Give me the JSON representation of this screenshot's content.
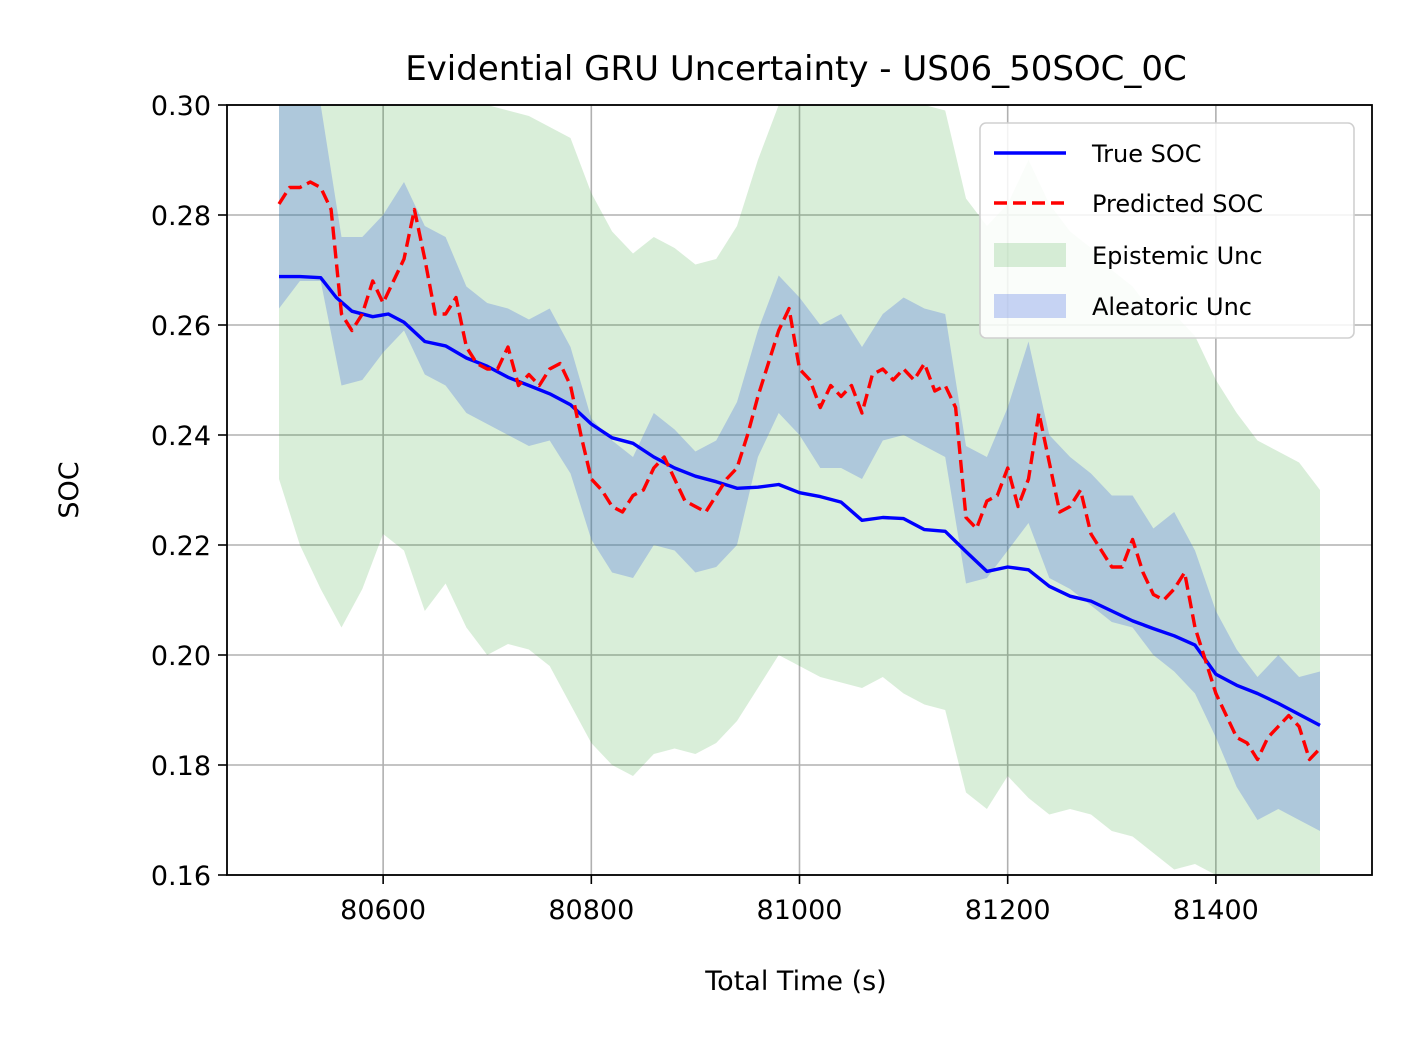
{
  "chart_data": {
    "type": "line",
    "title": "Evidential GRU Uncertainty - US06_50SOC_0C",
    "xlabel": "Total Time (s)",
    "ylabel": "SOC",
    "xlim": [
      80450,
      81550
    ],
    "ylim": [
      0.16,
      0.3
    ],
    "xticks": [
      80600,
      80800,
      81000,
      81200,
      81400
    ],
    "xtick_labels": [
      "80600",
      "80800",
      "81000",
      "81200",
      "81400"
    ],
    "yticks": [
      0.16,
      0.18,
      0.2,
      0.22,
      0.24,
      0.26,
      0.28,
      0.3
    ],
    "ytick_labels": [
      "0.16",
      "0.18",
      "0.20",
      "0.22",
      "0.24",
      "0.26",
      "0.28",
      "0.30"
    ],
    "grid": true,
    "legend_position": "top-right",
    "colors": {
      "true_soc": "#0000ff",
      "predicted_soc": "#ff0000",
      "epistemic": "#2ca02c",
      "aleatoric": "#4169e1"
    },
    "series": [
      {
        "name": "True SOC",
        "kind": "line",
        "x": [
          80500,
          80520,
          80540,
          80555,
          80570,
          80590,
          80605,
          80620,
          80640,
          80660,
          80680,
          80700,
          80720,
          80740,
          80760,
          80780,
          80800,
          80820,
          80840,
          80860,
          80880,
          80900,
          80920,
          80940,
          80960,
          80980,
          81000,
          81020,
          81040,
          81060,
          81080,
          81100,
          81120,
          81140,
          81160,
          81180,
          81200,
          81220,
          81240,
          81260,
          81280,
          81300,
          81320,
          81340,
          81360,
          81380,
          81400,
          81420,
          81440,
          81460,
          81480,
          81500
        ],
        "y": [
          0.2688,
          0.2688,
          0.2686,
          0.265,
          0.2625,
          0.2615,
          0.262,
          0.2605,
          0.257,
          0.2562,
          0.254,
          0.2525,
          0.2505,
          0.249,
          0.2475,
          0.2455,
          0.242,
          0.2395,
          0.2385,
          0.236,
          0.234,
          0.2325,
          0.2315,
          0.2303,
          0.2305,
          0.231,
          0.2295,
          0.2288,
          0.2278,
          0.2245,
          0.225,
          0.2248,
          0.2228,
          0.2225,
          0.2188,
          0.2152,
          0.216,
          0.2155,
          0.2125,
          0.2107,
          0.2098,
          0.208,
          0.2062,
          0.2048,
          0.2035,
          0.2018,
          0.1965,
          0.1945,
          0.193,
          0.1912,
          0.1892,
          0.1872
        ]
      },
      {
        "name": "Predicted SOC",
        "kind": "dashed-line",
        "x": [
          80500,
          80510,
          80520,
          80530,
          80540,
          80550,
          80560,
          80570,
          80580,
          80590,
          80600,
          80610,
          80620,
          80630,
          80640,
          80650,
          80660,
          80670,
          80680,
          80690,
          80700,
          80710,
          80720,
          80730,
          80740,
          80750,
          80760,
          80770,
          80780,
          80790,
          80800,
          80810,
          80820,
          80830,
          80840,
          80850,
          80860,
          80870,
          80880,
          80890,
          80900,
          80910,
          80920,
          80930,
          80940,
          80950,
          80960,
          80970,
          80980,
          80990,
          81000,
          81010,
          81020,
          81030,
          81040,
          81050,
          81060,
          81070,
          81080,
          81090,
          81100,
          81110,
          81120,
          81130,
          81140,
          81150,
          81160,
          81170,
          81180,
          81190,
          81200,
          81210,
          81220,
          81230,
          81240,
          81250,
          81260,
          81270,
          81280,
          81290,
          81300,
          81310,
          81320,
          81330,
          81340,
          81350,
          81360,
          81370,
          81380,
          81390,
          81400,
          81410,
          81420,
          81430,
          81440,
          81450,
          81460,
          81470,
          81480,
          81490,
          81500
        ],
        "y": [
          0.282,
          0.285,
          0.285,
          0.286,
          0.285,
          0.281,
          0.262,
          0.259,
          0.262,
          0.268,
          0.264,
          0.268,
          0.272,
          0.281,
          0.272,
          0.262,
          0.262,
          0.265,
          0.256,
          0.253,
          0.252,
          0.252,
          0.256,
          0.249,
          0.251,
          0.249,
          0.252,
          0.253,
          0.249,
          0.24,
          0.232,
          0.23,
          0.227,
          0.226,
          0.229,
          0.23,
          0.234,
          0.236,
          0.232,
          0.228,
          0.227,
          0.226,
          0.229,
          0.232,
          0.234,
          0.24,
          0.247,
          0.253,
          0.259,
          0.263,
          0.252,
          0.25,
          0.245,
          0.249,
          0.247,
          0.249,
          0.244,
          0.251,
          0.252,
          0.25,
          0.252,
          0.25,
          0.253,
          0.248,
          0.249,
          0.245,
          0.225,
          0.223,
          0.228,
          0.229,
          0.234,
          0.227,
          0.232,
          0.244,
          0.235,
          0.226,
          0.227,
          0.23,
          0.222,
          0.219,
          0.216,
          0.216,
          0.221,
          0.215,
          0.211,
          0.21,
          0.212,
          0.215,
          0.205,
          0.199,
          0.193,
          0.189,
          0.185,
          0.184,
          0.181,
          0.185,
          0.187,
          0.189,
          0.187,
          0.181,
          0.183
        ]
      },
      {
        "name": "Epistemic Unc",
        "kind": "band",
        "x": [
          80500,
          80520,
          80540,
          80560,
          80580,
          80600,
          80620,
          80640,
          80660,
          80680,
          80700,
          80720,
          80740,
          80760,
          80780,
          80800,
          80820,
          80840,
          80860,
          80880,
          80900,
          80920,
          80940,
          80960,
          80980,
          81000,
          81020,
          81040,
          81060,
          81080,
          81100,
          81120,
          81140,
          81160,
          81180,
          81200,
          81220,
          81240,
          81260,
          81280,
          81300,
          81320,
          81340,
          81360,
          81380,
          81400,
          81420,
          81440,
          81460,
          81480,
          81500
        ],
        "lower": [
          0.232,
          0.22,
          0.212,
          0.205,
          0.212,
          0.222,
          0.219,
          0.208,
          0.213,
          0.205,
          0.2,
          0.202,
          0.201,
          0.198,
          0.191,
          0.184,
          0.18,
          0.178,
          0.182,
          0.183,
          0.182,
          0.184,
          0.188,
          0.194,
          0.2,
          0.198,
          0.196,
          0.195,
          0.194,
          0.196,
          0.193,
          0.191,
          0.19,
          0.175,
          0.172,
          0.178,
          0.174,
          0.171,
          0.172,
          0.171,
          0.168,
          0.167,
          0.164,
          0.161,
          0.162,
          0.16,
          0.16,
          0.16,
          0.16,
          0.16,
          0.16
        ],
        "upper": [
          0.3,
          0.3,
          0.3,
          0.3,
          0.3,
          0.3,
          0.3,
          0.3,
          0.3,
          0.3,
          0.3,
          0.299,
          0.298,
          0.296,
          0.294,
          0.284,
          0.277,
          0.273,
          0.276,
          0.274,
          0.271,
          0.272,
          0.278,
          0.29,
          0.3,
          0.3,
          0.3,
          0.3,
          0.3,
          0.3,
          0.3,
          0.3,
          0.299,
          0.283,
          0.278,
          0.282,
          0.29,
          0.282,
          0.277,
          0.274,
          0.27,
          0.267,
          0.262,
          0.262,
          0.258,
          0.25,
          0.244,
          0.239,
          0.237,
          0.235,
          0.23
        ]
      },
      {
        "name": "Aleatoric Unc",
        "kind": "band",
        "x": [
          80500,
          80520,
          80540,
          80560,
          80580,
          80600,
          80620,
          80640,
          80660,
          80680,
          80700,
          80720,
          80740,
          80760,
          80780,
          80800,
          80820,
          80840,
          80860,
          80880,
          80900,
          80920,
          80940,
          80960,
          80980,
          81000,
          81020,
          81040,
          81060,
          81080,
          81100,
          81120,
          81140,
          81160,
          81180,
          81200,
          81220,
          81240,
          81260,
          81280,
          81300,
          81320,
          81340,
          81360,
          81380,
          81400,
          81420,
          81440,
          81460,
          81480,
          81500
        ],
        "lower": [
          0.263,
          0.268,
          0.268,
          0.249,
          0.25,
          0.255,
          0.259,
          0.251,
          0.249,
          0.244,
          0.242,
          0.24,
          0.238,
          0.239,
          0.233,
          0.221,
          0.215,
          0.214,
          0.22,
          0.219,
          0.215,
          0.216,
          0.22,
          0.236,
          0.244,
          0.24,
          0.234,
          0.234,
          0.232,
          0.239,
          0.24,
          0.238,
          0.236,
          0.213,
          0.214,
          0.219,
          0.224,
          0.214,
          0.212,
          0.209,
          0.206,
          0.205,
          0.2,
          0.197,
          0.193,
          0.185,
          0.176,
          0.17,
          0.172,
          0.17,
          0.168
        ],
        "upper": [
          0.3,
          0.3,
          0.3,
          0.276,
          0.276,
          0.28,
          0.286,
          0.278,
          0.276,
          0.267,
          0.264,
          0.263,
          0.261,
          0.263,
          0.256,
          0.243,
          0.239,
          0.236,
          0.244,
          0.241,
          0.237,
          0.239,
          0.246,
          0.259,
          0.269,
          0.265,
          0.26,
          0.262,
          0.256,
          0.262,
          0.265,
          0.263,
          0.262,
          0.238,
          0.236,
          0.245,
          0.257,
          0.24,
          0.236,
          0.233,
          0.229,
          0.229,
          0.223,
          0.226,
          0.219,
          0.208,
          0.201,
          0.196,
          0.2,
          0.196,
          0.197
        ]
      }
    ]
  }
}
